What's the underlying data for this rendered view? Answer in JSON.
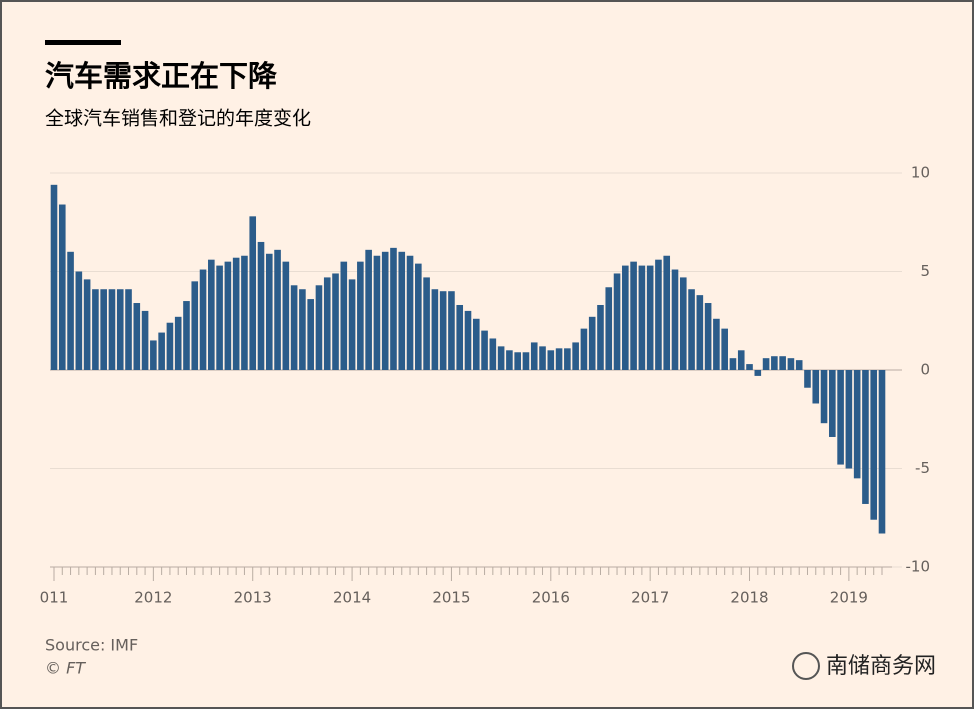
{
  "chart_data": {
    "type": "bar",
    "title": "汽车需求正在下降",
    "subtitle": "全球汽车销售和登记的年度变化",
    "source": "Source: IMF",
    "credit": "© FT",
    "watermark": "南储商务网",
    "color": "#2b5c8a",
    "categories": [
      "011",
      null,
      null,
      null,
      null,
      null,
      null,
      null,
      null,
      null,
      null,
      null,
      "2012",
      null,
      null,
      null,
      null,
      null,
      null,
      null,
      null,
      null,
      null,
      null,
      "2013",
      null,
      null,
      null,
      null,
      null,
      null,
      null,
      null,
      null,
      null,
      null,
      "2014",
      null,
      null,
      null,
      null,
      null,
      null,
      null,
      null,
      null,
      null,
      null,
      "2015",
      null,
      null,
      null,
      null,
      null,
      null,
      null,
      null,
      null,
      null,
      null,
      "2016",
      null,
      null,
      null,
      null,
      null,
      null,
      null,
      null,
      null,
      null,
      null,
      "2017",
      null,
      null,
      null,
      null,
      null,
      null,
      null,
      null,
      null,
      null,
      null,
      "2018",
      null,
      null,
      null,
      null,
      null,
      null,
      null,
      null,
      null,
      null,
      null,
      "2019",
      null,
      null,
      null,
      null
    ],
    "values": [
      9.4,
      8.4,
      6.0,
      5.0,
      4.6,
      4.1,
      4.1,
      4.1,
      4.1,
      4.1,
      3.4,
      3.0,
      1.5,
      1.9,
      2.4,
      2.7,
      3.5,
      4.5,
      5.1,
      5.6,
      5.3,
      5.5,
      5.7,
      5.8,
      7.8,
      6.5,
      5.9,
      6.1,
      5.5,
      4.3,
      4.1,
      3.6,
      4.3,
      4.7,
      4.9,
      5.5,
      4.6,
      5.5,
      6.1,
      5.8,
      6.0,
      6.2,
      6.0,
      5.8,
      5.4,
      4.7,
      4.1,
      4.0,
      4.0,
      3.3,
      3.0,
      2.6,
      2.0,
      1.6,
      1.2,
      1.0,
      0.9,
      0.9,
      1.4,
      1.2,
      1.0,
      1.1,
      1.1,
      1.4,
      2.1,
      2.7,
      3.3,
      4.2,
      4.9,
      5.3,
      5.5,
      5.3,
      5.3,
      5.6,
      5.8,
      5.1,
      4.7,
      4.1,
      3.8,
      3.4,
      2.6,
      2.1,
      0.6,
      1.0,
      0.3,
      -0.3,
      0.6,
      0.7,
      0.7,
      0.6,
      0.5,
      -0.9,
      -1.7,
      -2.7,
      -3.4,
      -4.8,
      -5.0,
      -5.5,
      -6.8,
      -7.6,
      -8.3
    ],
    "ylim": [
      -10,
      10
    ],
    "yticks": [
      10,
      5,
      0,
      -5,
      -10
    ],
    "grid": true
  }
}
